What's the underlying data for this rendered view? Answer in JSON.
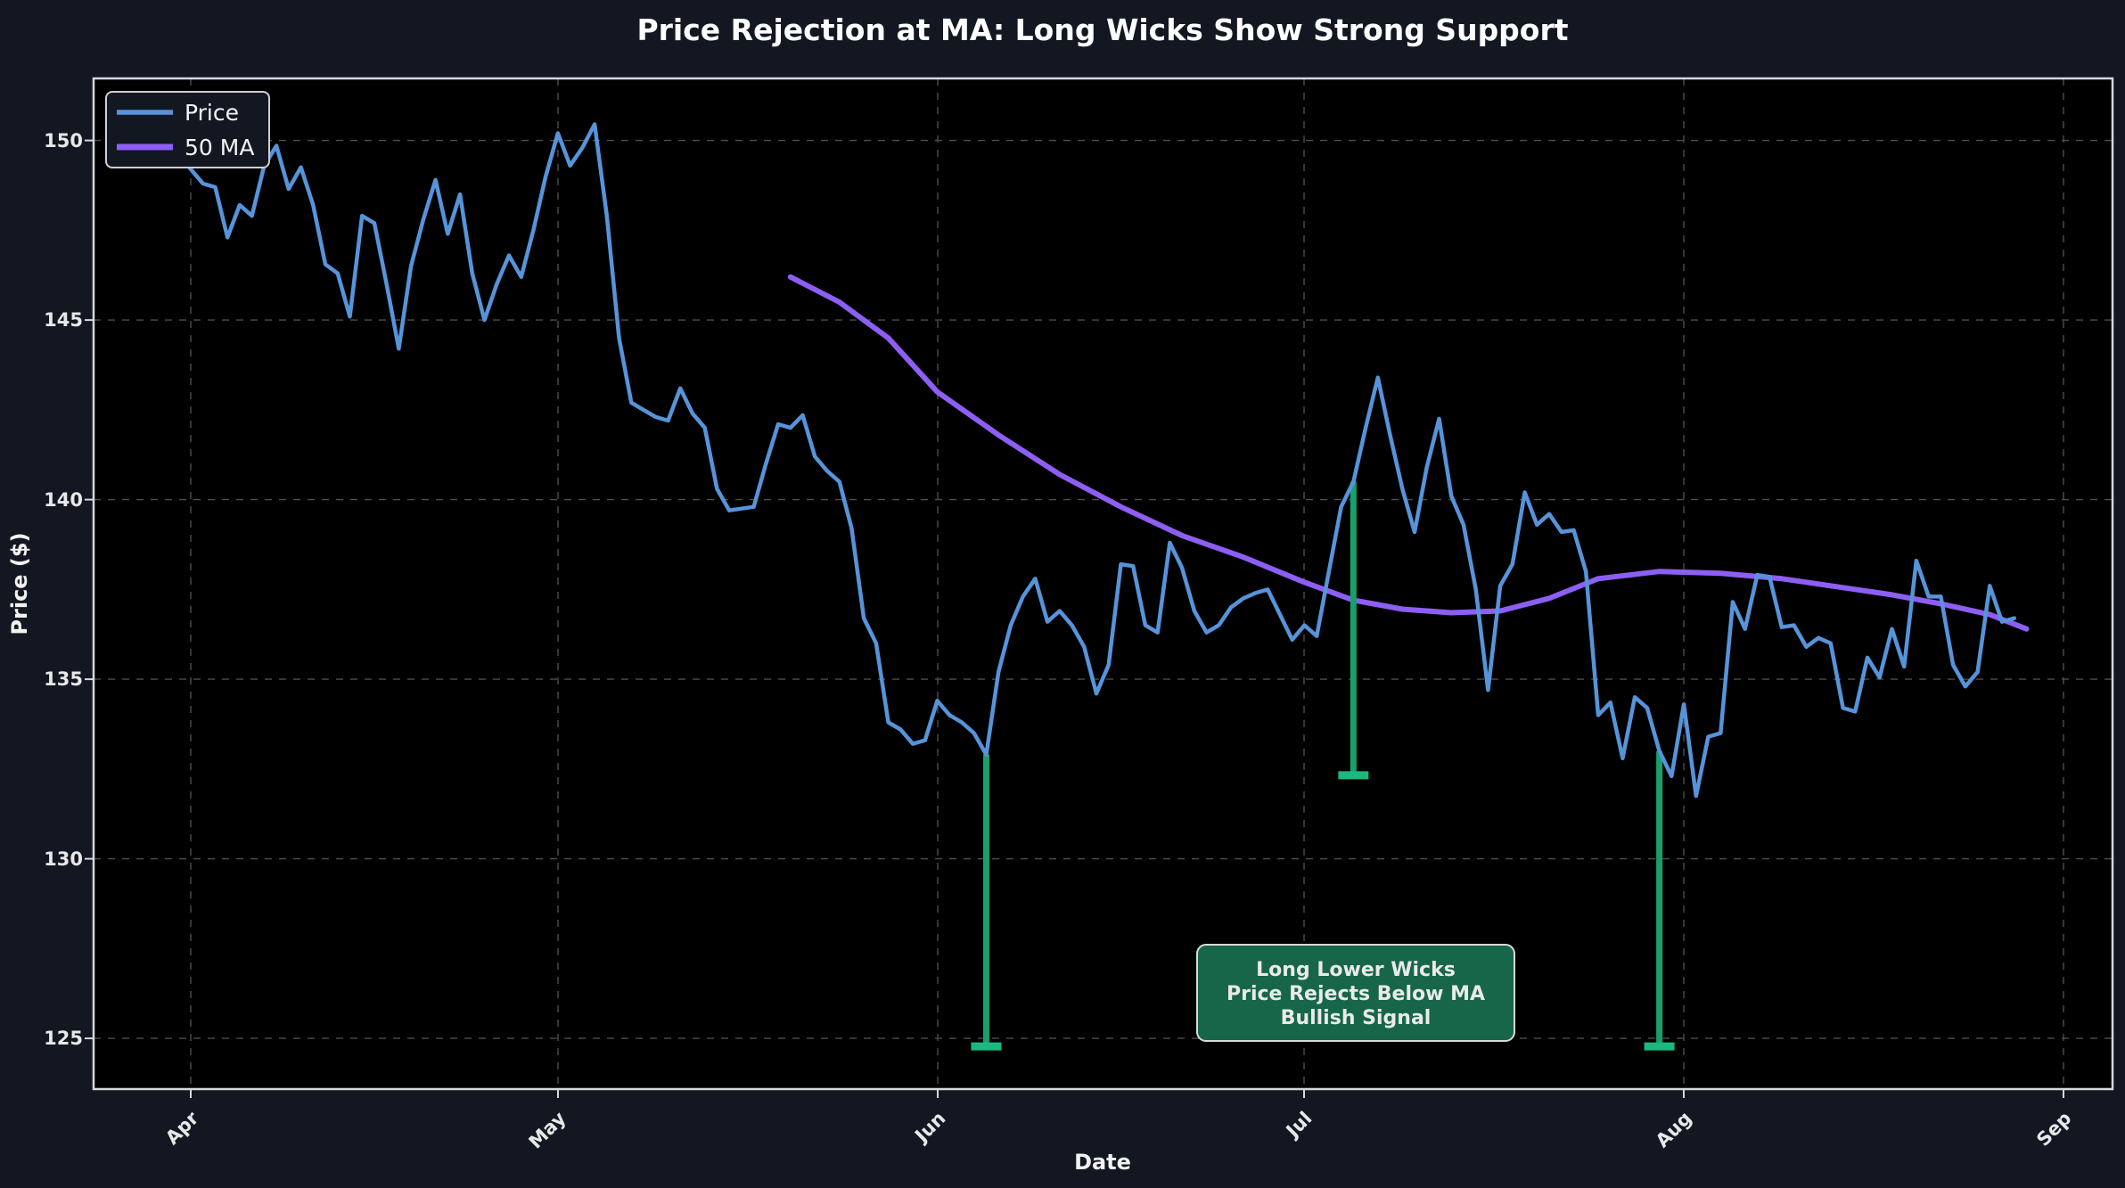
{
  "title": "Price Rejection at MA: Long Wicks Show Strong Support",
  "axes": {
    "xlabel": "Date",
    "ylabel": "Price ($)",
    "x_tick_labels": [
      "Apr",
      "May",
      "Jun",
      "Jul",
      "Aug",
      "Sep"
    ],
    "y_tick_labels": [
      "150",
      "145",
      "140",
      "135",
      "130",
      "125"
    ]
  },
  "legend": {
    "items": [
      {
        "label": "Price",
        "color": "#5694da"
      },
      {
        "label": "50 MA",
        "color": "#8e5ef4"
      }
    ]
  },
  "annotation": {
    "lines": [
      "Long Lower Wicks",
      "Price Rejects Below MA",
      "Bullish Signal"
    ],
    "fill": "#176649",
    "border_color": "#d9d9d9",
    "text_color": "#2bb47d"
  },
  "colors": {
    "figure_bg": "#131722",
    "plot_bg": "#000000",
    "grid": "#4e4e4e",
    "spine": "#d6d9dc",
    "price": "#5694da",
    "ma": "#8e5ef4",
    "wick": "#18a06b",
    "wick_cap": "#1cb97e"
  },
  "chart_data": {
    "type": "line",
    "title": "Price Rejection at MA: Long Wicks Show Strong Support",
    "xlabel": "Date",
    "ylabel": "Price ($)",
    "grid": true,
    "legend_position": "upper left",
    "ylim": [
      123.6,
      151.7
    ],
    "y_ticks": [
      125,
      130,
      135,
      140,
      145,
      150
    ],
    "x_axis": {
      "tick_labels": [
        "Apr",
        "May",
        "Jun",
        "Jul",
        "Aug",
        "Sep"
      ],
      "tick_day_offsets": [
        0,
        30,
        61,
        91,
        122,
        153
      ],
      "note": "day offsets measured from Apr 1"
    },
    "series": [
      {
        "name": "Price",
        "color": "#5694da",
        "start_day": -6,
        "daily_values": [
          150.2,
          149.8,
          150.4,
          149.9,
          149.5,
          149.6,
          149.2,
          148.8,
          148.7,
          147.3,
          148.2,
          147.9,
          149.3,
          149.85,
          148.65,
          149.25,
          148.2,
          146.55,
          146.3,
          145.1,
          147.9,
          147.7,
          146.0,
          144.2,
          146.5,
          147.8,
          148.9,
          147.4,
          148.5,
          146.3,
          145.0,
          146.0,
          146.8,
          146.2,
          147.5,
          149.0,
          150.2,
          149.3,
          149.8,
          150.45,
          147.9,
          144.5,
          142.7,
          142.5,
          142.3,
          142.2,
          143.1,
          142.4,
          142.0,
          140.3,
          139.7,
          139.75,
          139.8,
          141.0,
          142.1,
          142.0,
          142.35,
          141.2,
          140.8,
          140.5,
          139.2,
          136.7,
          136.0,
          133.8,
          133.6,
          133.2,
          133.3,
          134.4,
          134.0,
          133.8,
          133.5,
          132.9,
          135.2,
          136.5,
          137.3,
          137.8,
          136.6,
          136.9,
          136.5,
          135.9,
          134.6,
          135.4,
          138.2,
          138.15,
          136.5,
          136.3,
          138.8,
          138.1,
          136.9,
          136.3,
          136.5,
          137.0,
          137.25,
          137.4,
          137.5,
          136.8,
          136.1,
          136.5,
          136.2,
          138.0,
          139.8,
          140.5,
          142.0,
          143.4,
          141.8,
          140.3,
          139.1,
          140.9,
          142.25,
          140.1,
          139.3,
          137.5,
          134.7,
          137.6,
          138.2,
          140.2,
          139.3,
          139.6,
          139.1,
          139.15,
          138.0,
          134.0,
          134.35,
          132.8,
          134.5,
          134.2,
          133.0,
          132.3,
          134.3,
          131.75,
          133.4,
          133.5,
          137.15,
          136.4,
          137.9,
          137.85,
          136.45,
          136.5,
          135.9,
          136.15,
          136.0,
          134.2,
          134.1,
          135.6,
          135.05,
          136.4,
          135.35,
          138.3,
          137.3,
          137.3,
          135.4,
          134.8,
          135.2,
          137.6,
          136.6,
          136.7
        ]
      },
      {
        "name": "50 MA",
        "color": "#8e5ef4",
        "points": [
          [
            49,
            146.2
          ],
          [
            53,
            145.5
          ],
          [
            57,
            144.5
          ],
          [
            61,
            143.0
          ],
          [
            66,
            141.8
          ],
          [
            71,
            140.7
          ],
          [
            76,
            139.8
          ],
          [
            81,
            139.0
          ],
          [
            86,
            138.4
          ],
          [
            91,
            137.7
          ],
          [
            95,
            137.2
          ],
          [
            99,
            136.95
          ],
          [
            103,
            136.85
          ],
          [
            107,
            136.9
          ],
          [
            111,
            137.25
          ],
          [
            115,
            137.8
          ],
          [
            120,
            138.0
          ],
          [
            125,
            137.95
          ],
          [
            130,
            137.8
          ],
          [
            135,
            137.55
          ],
          [
            139,
            137.35
          ],
          [
            143,
            137.1
          ],
          [
            147,
            136.8
          ],
          [
            150,
            136.4
          ]
        ]
      }
    ],
    "wicks": {
      "color": "#18a06b",
      "cap_color": "#1cb97e",
      "items": [
        {
          "day": 65,
          "low": 124.85,
          "high": 132.9
        },
        {
          "day": 95,
          "low": 132.4,
          "high": 140.5
        },
        {
          "day": 120,
          "low": 124.85,
          "high": 133.0
        }
      ]
    }
  }
}
